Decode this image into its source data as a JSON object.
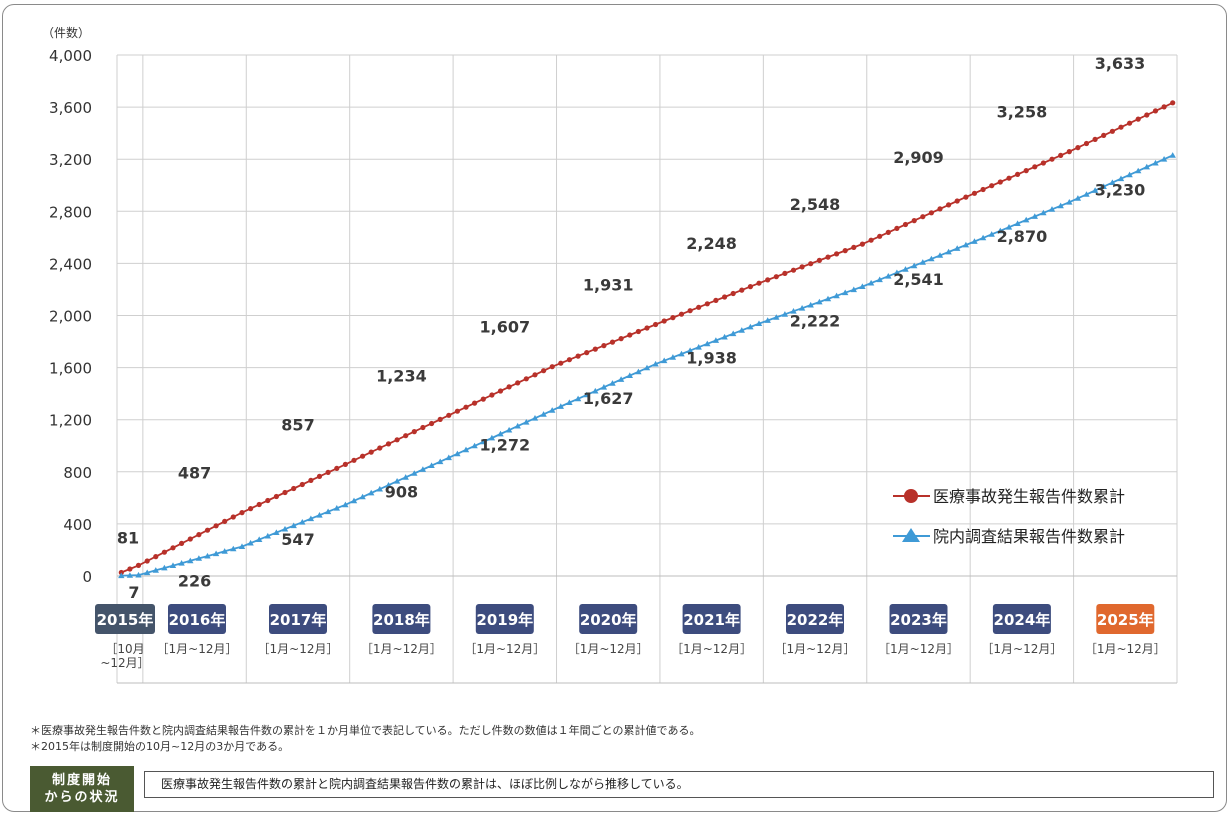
{
  "chart_data": {
    "type": "line",
    "ylabel": "（件数）",
    "ylim": [
      0,
      4000
    ],
    "yticks": [
      "4,000",
      "3,600",
      "3,200",
      "2,800",
      "2,400",
      "2,000",
      "1,600",
      "1,200",
      "800",
      "400",
      "0"
    ],
    "ytick_values": [
      4000,
      3600,
      3200,
      2800,
      2400,
      2000,
      1600,
      1200,
      800,
      400,
      0
    ],
    "grid": true,
    "legend_position": "bottom-right",
    "years": [
      {
        "label": "2015年",
        "range_line1": "［10月",
        "range_line2": "~12月］",
        "color": "#44546a"
      },
      {
        "label": "2016年",
        "range_line1": "［1月~12月］",
        "range_line2": "",
        "color": "#3d4c7e"
      },
      {
        "label": "2017年",
        "range_line1": "［1月~12月］",
        "range_line2": "",
        "color": "#3d4c7e"
      },
      {
        "label": "2018年",
        "range_line1": "［1月~12月］",
        "range_line2": "",
        "color": "#3d4c7e"
      },
      {
        "label": "2019年",
        "range_line1": "［1月~12月］",
        "range_line2": "",
        "color": "#3d4c7e"
      },
      {
        "label": "2020年",
        "range_line1": "［1月~12月］",
        "range_line2": "",
        "color": "#3d4c7e"
      },
      {
        "label": "2021年",
        "range_line1": "［1月~12月］",
        "range_line2": "",
        "color": "#3d4c7e"
      },
      {
        "label": "2022年",
        "range_line1": "［1月~12月］",
        "range_line2": "",
        "color": "#3d4c7e"
      },
      {
        "label": "2023年",
        "range_line1": "［1月~12月］",
        "range_line2": "",
        "color": "#3d4c7e"
      },
      {
        "label": "2024年",
        "range_line1": "［1月~12月］",
        "range_line2": "",
        "color": "#3d4c7e"
      },
      {
        "label": "2025年",
        "range_line1": "［1月~12月］",
        "range_line2": "",
        "color": "#e0682e"
      }
    ],
    "series": [
      {
        "name": "医療事故発生報告件数累計",
        "color": "#b8312a",
        "marker": "circle",
        "year_end_values": [
          81,
          487,
          857,
          1234,
          1607,
          1931,
          2248,
          2548,
          2909,
          3258,
          3633
        ],
        "data_labels": [
          "81",
          "487",
          "857",
          "1,234",
          "1,607",
          "1,931",
          "2,248",
          "2,548",
          "2,909",
          "3,258",
          "3,633"
        ]
      },
      {
        "name": "院内調査結果報告件数累計",
        "color": "#3f9ad6",
        "marker": "triangle",
        "year_end_values": [
          7,
          226,
          547,
          908,
          1272,
          1627,
          1938,
          2222,
          2541,
          2870,
          3230
        ],
        "data_labels": [
          "7",
          "226",
          "547",
          "908",
          "1,272",
          "1,627",
          "1,938",
          "2,222",
          "2,541",
          "2,870",
          "3,230"
        ]
      }
    ]
  },
  "notes": {
    "note1": "＊医療事故発生報告件数と院内調査結果報告件数の累計を１か月単位で表記している。ただし件数の数値は１年間ごとの累計値である。",
    "note2": "＊2015年は制度開始の10月~12月の3か月である。"
  },
  "status_badge": {
    "line1": "制度開始",
    "line2": "からの状況"
  },
  "summary": "医療事故発生報告件数の累計と院内調査結果報告件数の累計は、ほぼ比例しながら推移している。"
}
